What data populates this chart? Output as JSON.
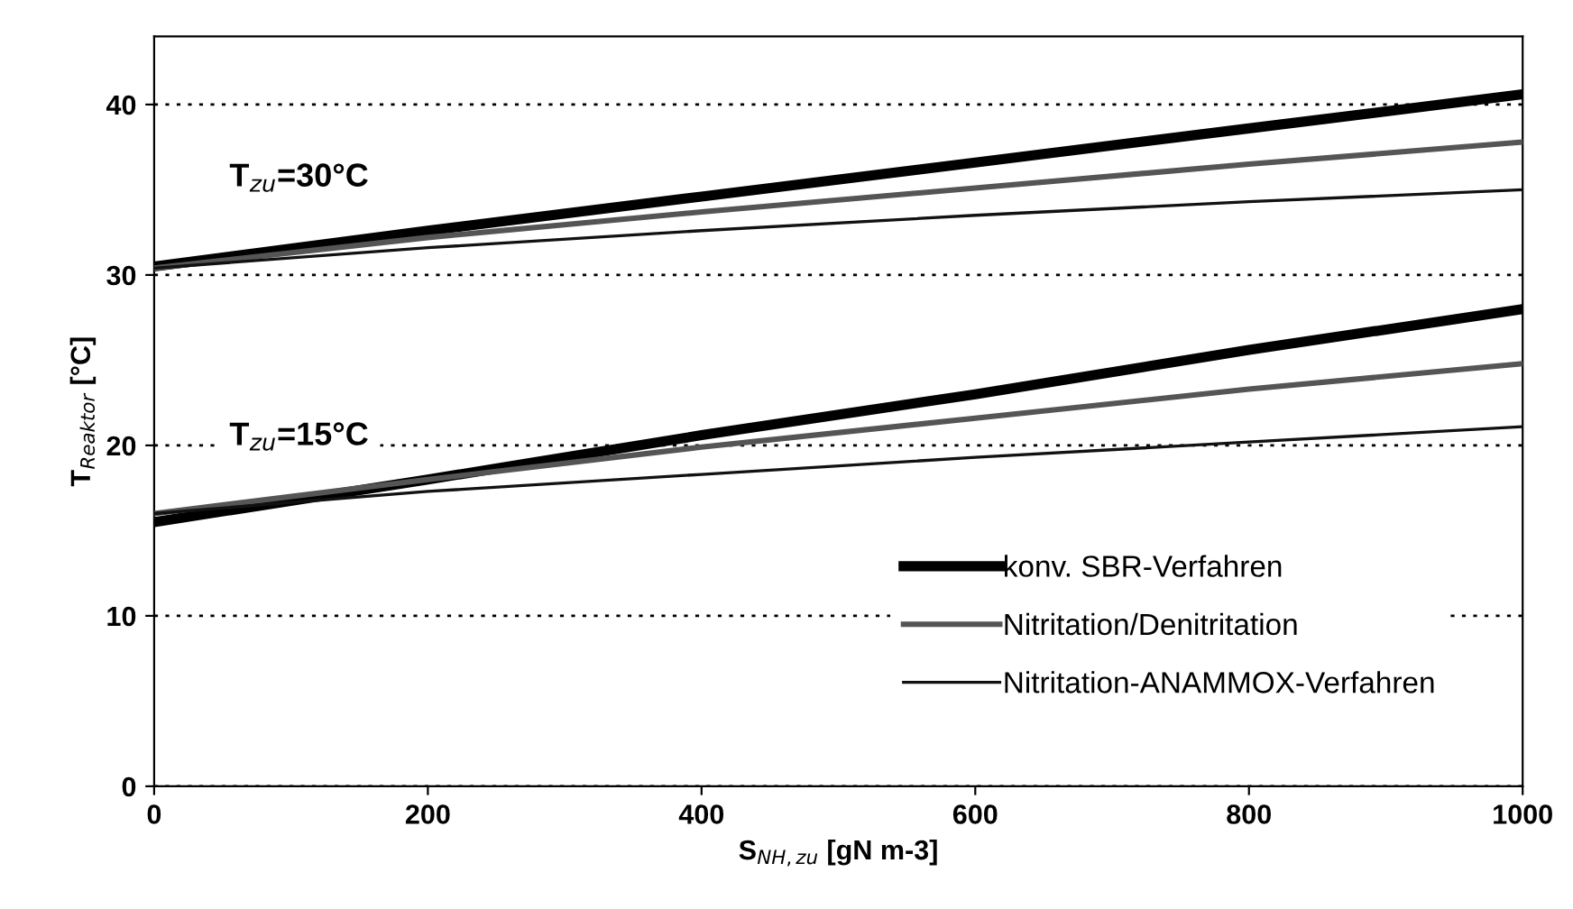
{
  "chart_data": {
    "type": "line",
    "xlabel": "S$_{NH,zu}$ [gN m-3]",
    "ylabel": "T$_{Reaktor}$ [°C]",
    "x": [
      0,
      200,
      400,
      600,
      800,
      1000
    ],
    "series": [
      {
        "name": "konv. SBR-Verfahren",
        "color": "#000000",
        "values": [
          30.5,
          32.6,
          34.6,
          36.6,
          38.6,
          40.6
        ]
      },
      {
        "name": "Nitritation/Denitritation",
        "color": "#555555",
        "values": [
          30.4,
          32.2,
          33.7,
          35.1,
          36.5,
          37.8
        ]
      },
      {
        "name": "Nitritation-ANAMMOX-Verfahren",
        "color": "#111111",
        "values": [
          30.4,
          31.6,
          32.6,
          33.5,
          34.3,
          35.0
        ]
      },
      {
        "color": "#000000",
        "values": [
          15.5,
          18.0,
          20.6,
          23.0,
          25.6,
          28.0
        ]
      },
      {
        "color": "#555555",
        "values": [
          16.0,
          18.0,
          19.9,
          21.6,
          23.3,
          24.8
        ]
      },
      {
        "color": "#111111",
        "values": [
          16.0,
          17.3,
          18.3,
          19.3,
          20.2,
          21.1
        ]
      }
    ],
    "annotations": [
      "T$_{zu}$=30°C",
      "T$_{zu}$=15°C"
    ],
    "xlim": [
      0,
      1000
    ],
    "xticks": [
      0,
      200,
      400,
      600,
      800,
      1000
    ],
    "ylim": [
      0,
      44
    ],
    "yticks": [
      0,
      10,
      20,
      30,
      40
    ],
    "grid": "y",
    "legend": "bottom right",
    "marker": "none",
    "line_style": "solid"
  }
}
